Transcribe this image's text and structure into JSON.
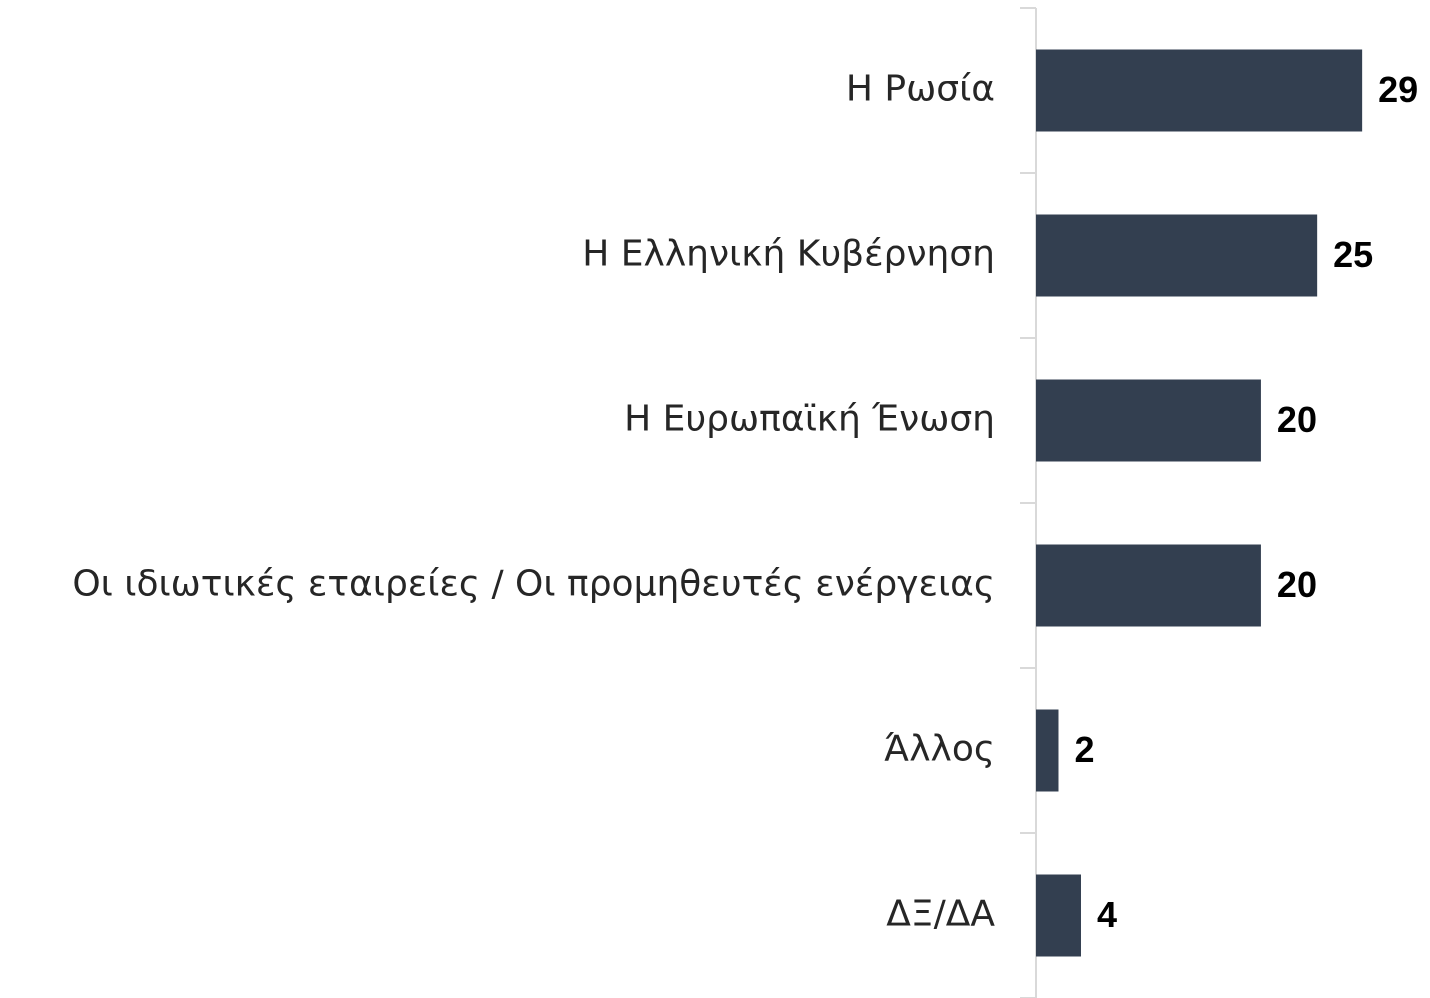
{
  "chart_data": {
    "type": "barh",
    "categories": [
      "Η Ρωσία",
      "Η Ελληνική Κυβέρνηση",
      "Η Ευρωπαϊκή Ένωση",
      "Οι ιδιωτικές εταιρείες / Οι προμηθευτές ενέργειας",
      "Άλλος",
      "ΔΞ/ΔΑ"
    ],
    "values": [
      29,
      25,
      20,
      20,
      2,
      4
    ],
    "color": "#333f50",
    "xlim": [
      0,
      34.5
    ]
  }
}
